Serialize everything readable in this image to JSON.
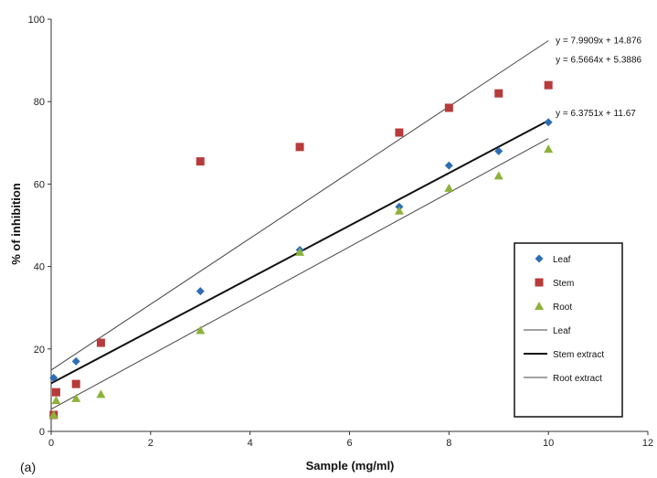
{
  "chart_data": {
    "type": "scatter",
    "panel_label": "(a)",
    "xlabel": "Sample (mg/ml)",
    "ylabel": "% of inhibition",
    "xlim": [
      0,
      12
    ],
    "ylim": [
      0,
      100
    ],
    "x_ticks": [
      "0",
      "2",
      "4",
      "6",
      "8",
      "10",
      "12"
    ],
    "y_ticks": [
      "0",
      "20",
      "40",
      "60",
      "80",
      "100"
    ],
    "grid": false,
    "legend_position": "right",
    "series": [
      {
        "name": "Leaf",
        "marker": "diamond",
        "color": "#2e6db5",
        "x": [
          0.05,
          0.5,
          1,
          3,
          5,
          7,
          8,
          9,
          10
        ],
        "y": [
          13,
          17,
          21.5,
          34,
          44,
          54.5,
          64.5,
          68,
          75
        ]
      },
      {
        "name": "Stem",
        "marker": "square",
        "color": "#b83a3a",
        "x": [
          0.05,
          0.1,
          0.5,
          1,
          3,
          5,
          7,
          8,
          9,
          10
        ],
        "y": [
          4,
          9.5,
          11.5,
          21.5,
          65.5,
          69,
          72.5,
          78.5,
          82,
          84
        ]
      },
      {
        "name": "Root",
        "marker": "triangle",
        "color": "#8db23a",
        "x": [
          0.05,
          0.1,
          0.5,
          1,
          3,
          5,
          7,
          8,
          9,
          10
        ],
        "y": [
          4,
          7.5,
          8,
          9,
          24.5,
          43.5,
          53.5,
          59,
          62,
          68.5
        ]
      }
    ],
    "trendlines": [
      {
        "name": "Leaf",
        "equation": "y = 7.9909x + 14.876",
        "slope": 7.9909,
        "intercept": 14.876,
        "color": "#444444",
        "width": 1
      },
      {
        "name": "Stem extract",
        "equation": "y = 6.3751x + 11.67",
        "slope": 6.3751,
        "intercept": 11.67,
        "color": "#111111",
        "width": 2
      },
      {
        "name": "Root extract",
        "equation": "y = 6.5664x + 5.3886",
        "slope": 6.5664,
        "intercept": 5.3886,
        "color": "#444444",
        "width": 1
      }
    ]
  }
}
